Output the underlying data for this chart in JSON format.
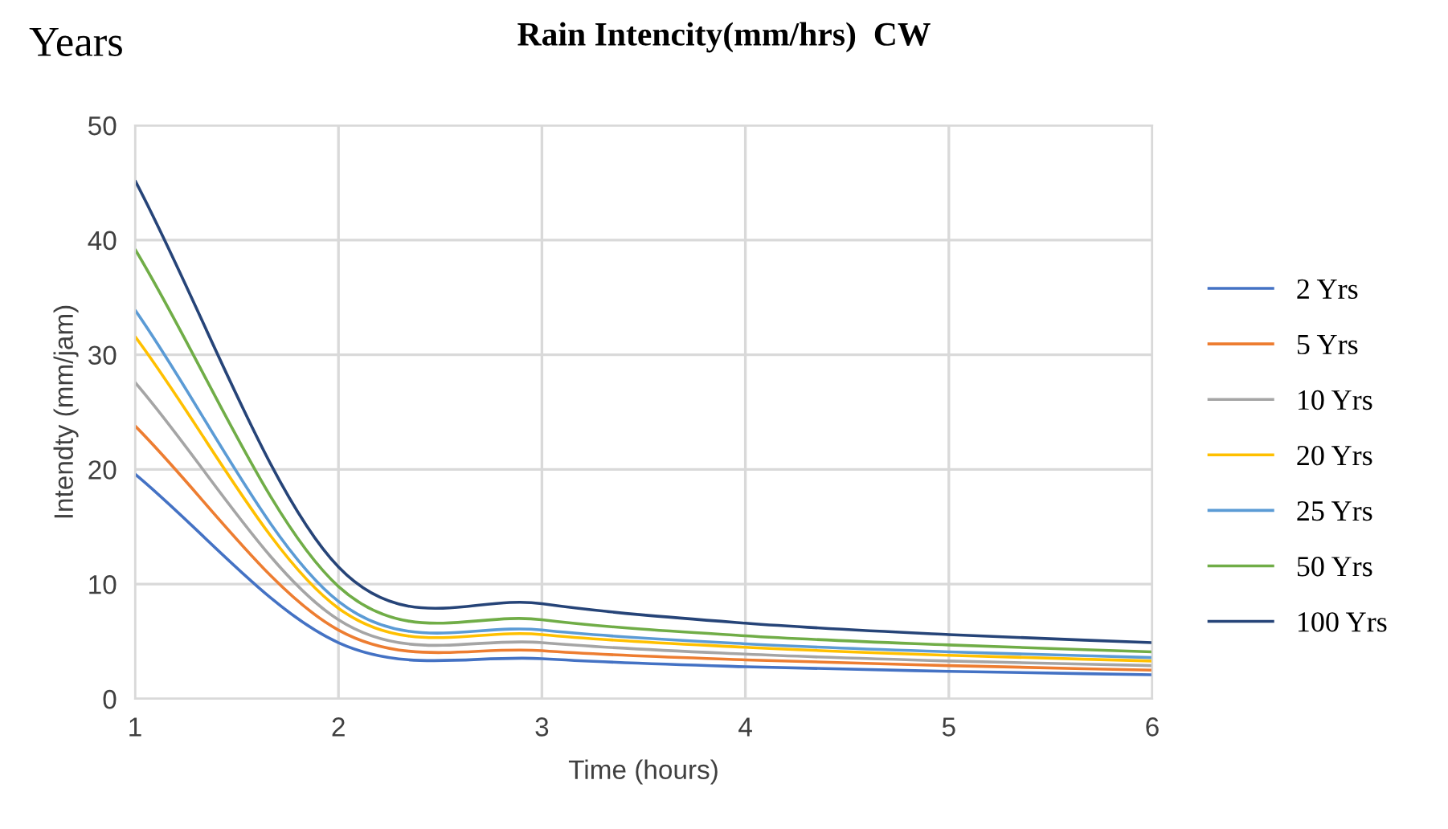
{
  "chart_data": {
    "type": "line",
    "title": "Rain Intencity(mm/hrs)  CW",
    "annotations": [
      "Years"
    ],
    "xlabel": "Time (hours)",
    "ylabel": "Intendty (mm/jam)",
    "x": [
      1,
      2,
      3,
      4,
      5,
      6
    ],
    "xlim": [
      1,
      6
    ],
    "xticks": [
      1,
      2,
      3,
      4,
      5,
      6
    ],
    "ylim": [
      0,
      50
    ],
    "yticks": [
      0,
      10,
      20,
      30,
      40,
      50
    ],
    "grid": true,
    "legend": "right",
    "marker": "none",
    "line_style": "solid",
    "series": [
      {
        "name": "2 Yrs",
        "color": "#4472c4",
        "values": [
          19.6,
          4.9,
          3.5,
          2.8,
          2.4,
          2.1
        ]
      },
      {
        "name": "5 Yrs",
        "color": "#ed7d31",
        "values": [
          23.8,
          6.0,
          4.2,
          3.4,
          2.9,
          2.5
        ]
      },
      {
        "name": "10 Yrs",
        "color": "#a5a5a5",
        "values": [
          27.6,
          6.9,
          4.9,
          3.9,
          3.3,
          2.9
        ]
      },
      {
        "name": "20 Yrs",
        "color": "#ffc000",
        "values": [
          31.6,
          7.9,
          5.6,
          4.5,
          3.8,
          3.3
        ]
      },
      {
        "name": "25 Yrs",
        "color": "#5b9bd5",
        "values": [
          33.9,
          8.5,
          6.0,
          4.8,
          4.1,
          3.6
        ]
      },
      {
        "name": "50 Yrs",
        "color": "#70ad47",
        "values": [
          39.2,
          9.8,
          6.9,
          5.5,
          4.7,
          4.1
        ]
      },
      {
        "name": "100 Yrs",
        "color": "#264478",
        "values": [
          45.2,
          11.5,
          8.3,
          6.6,
          5.6,
          4.9
        ]
      }
    ]
  }
}
